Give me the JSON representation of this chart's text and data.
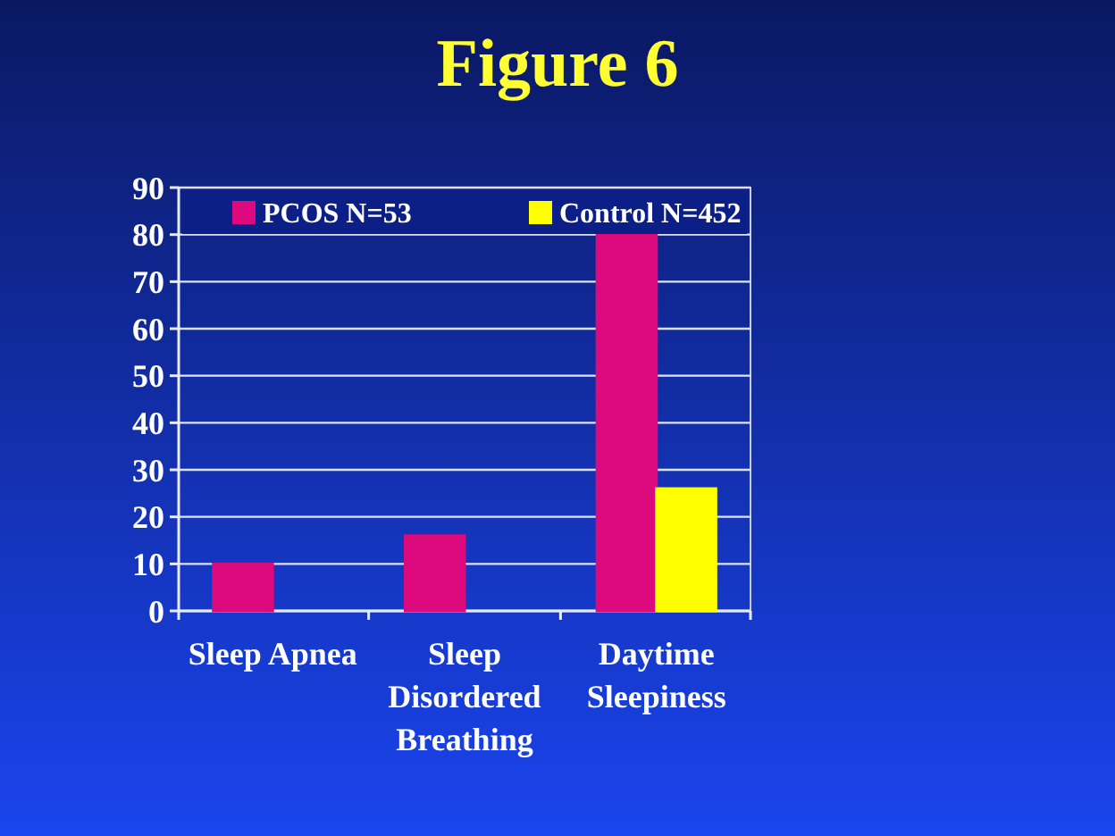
{
  "chart_data": {
    "type": "bar",
    "title": "Figure 6",
    "categories": [
      "Sleep Apnea",
      "Sleep Disordered Breathing",
      "Daytime Sleepiness"
    ],
    "series": [
      {
        "name": "PCOS N=53",
        "color": "#dc0a7c",
        "values": [
          10,
          16,
          80
        ]
      },
      {
        "name": "Control N=452",
        "color": "#ffff00",
        "values": [
          0,
          0,
          26
        ]
      }
    ],
    "ylim": [
      0,
      90
    ],
    "yticks": [
      0,
      10,
      20,
      30,
      40,
      50,
      60,
      70,
      80,
      90
    ],
    "grid": true,
    "legend": "top"
  }
}
